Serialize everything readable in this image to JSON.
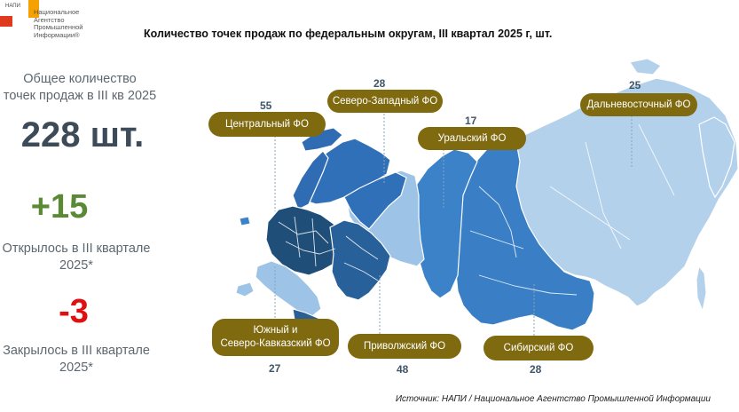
{
  "logo": {
    "small_text": "НАПИ",
    "text": "Национальное\nАгентство\nПромышленной\nИнформации®"
  },
  "title": "Количество точек продаж по федеральным округам, III квартал 2025 г, шт.",
  "summary": {
    "total_label": "Общее количество\nточек продаж в III кв 2025",
    "total_value": "228 шт.",
    "opened_value": "+15",
    "opened_label": "Открылось в III квартале\n2025*",
    "closed_value": "-3",
    "closed_label": "Закрылось в III квартале\n2025*"
  },
  "districts": [
    {
      "name": "Центральный ФО",
      "count": "55"
    },
    {
      "name": "Северо-Западный ФО",
      "count": "28"
    },
    {
      "name": "Уральский ФО",
      "count": "17"
    },
    {
      "name": "Дальневосточный  ФО",
      "count": "25"
    },
    {
      "name": "Южный и\nСеверо-Кавказский ФО",
      "count": "27"
    },
    {
      "name": "Приволжский ФО",
      "count": "48"
    },
    {
      "name": "Сибирский ФО",
      "count": "28"
    }
  ],
  "colors": {
    "darkest": "#1f4e79",
    "dark": "#2e75b6",
    "medium": "#3b82c9",
    "light": "#9dc3e6",
    "lightest": "#c5dcf0",
    "pill": "#7f6a10"
  },
  "source": "Источник: НАПИ / Национальное Агентство Промышленной Информации"
}
